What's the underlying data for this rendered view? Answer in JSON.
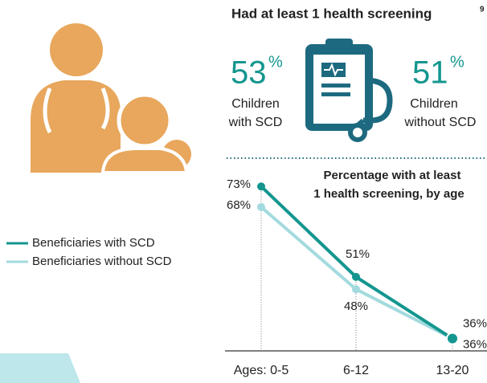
{
  "header": {
    "title": "Had at least 1 health screening",
    "footnote": "9"
  },
  "stats": [
    {
      "value": 53,
      "unit": "%",
      "label": [
        "Children",
        "with SCD"
      ]
    },
    {
      "value": 51,
      "unit": "%",
      "label": [
        "Children",
        "without SCD"
      ]
    }
  ],
  "chart_data": {
    "type": "line",
    "title": [
      "Percentage with at least",
      "1 health screening, by age"
    ],
    "categories": [
      "Ages: 0-5",
      "6-12",
      "13-20"
    ],
    "ylim": [
      33,
      75
    ],
    "series": [
      {
        "name": "Beneficiaries with SCD",
        "color": "#14968f",
        "values": [
          73,
          51,
          36
        ],
        "value_labels": [
          "73%",
          "51%",
          "36%"
        ]
      },
      {
        "name": "Beneficiaries without SCD",
        "color": "#a3dade",
        "values": [
          68,
          48,
          36
        ],
        "value_labels": [
          "68%",
          "48%",
          "36%"
        ]
      }
    ]
  }
}
